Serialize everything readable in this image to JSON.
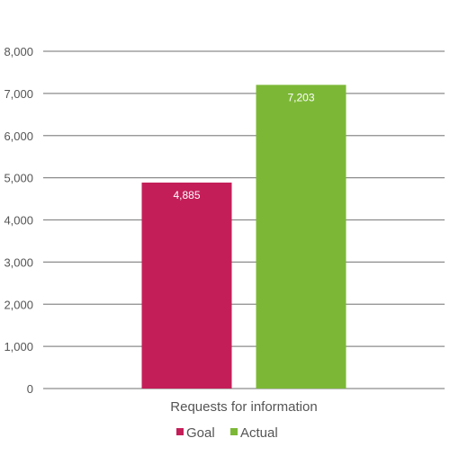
{
  "chart_data": {
    "type": "bar",
    "title": "",
    "xlabel": "",
    "ylabel": "",
    "categories": [
      "Requests for information"
    ],
    "series": [
      {
        "name": "Goal",
        "values": [
          4885
        ],
        "value_labels": [
          "4,885"
        ],
        "color": "#c41e58"
      },
      {
        "name": "Actual",
        "values": [
          7203
        ],
        "value_labels": [
          "7,203"
        ],
        "color": "#7cb836"
      }
    ],
    "ylim": [
      0,
      8000
    ],
    "yticks": [
      0,
      1000,
      2000,
      3000,
      4000,
      5000,
      6000,
      7000,
      8000
    ],
    "ytick_labels": [
      "0",
      "1,000",
      "2,000",
      "3,000",
      "4,000",
      "5,000",
      "6,000",
      "7,000",
      "8,000"
    ],
    "grid": true,
    "legend_position": "bottom-center",
    "gridline_color": "#8c8c8c",
    "tick_label_color": "#555555",
    "data_label_color": "#ffffff"
  }
}
